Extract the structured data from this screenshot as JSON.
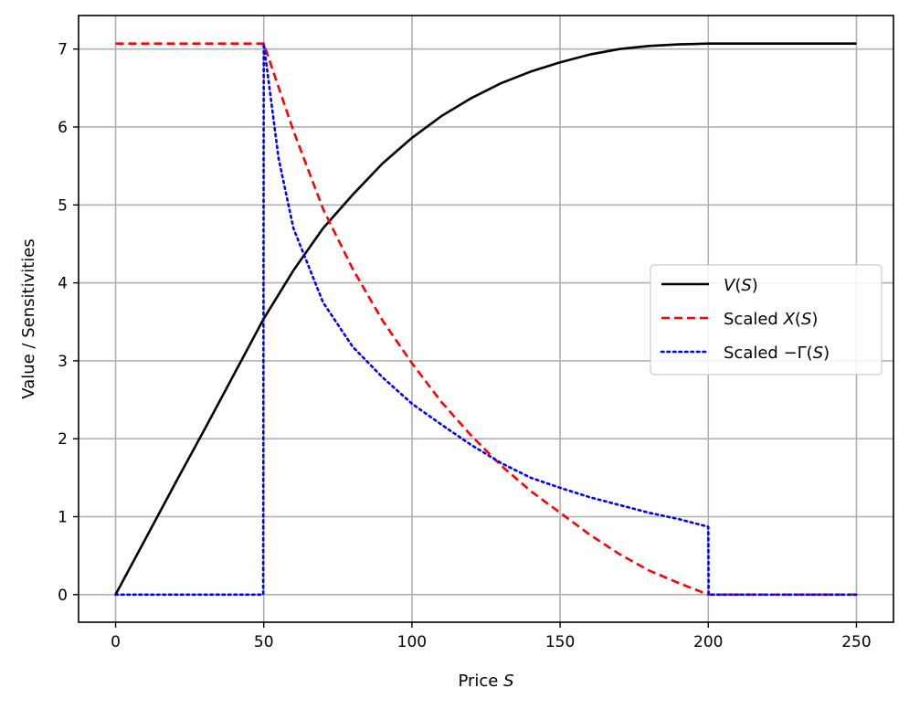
{
  "chart_data": {
    "type": "line",
    "title": "",
    "xlabel": {
      "text": "Price ",
      "var": "S"
    },
    "ylabel": "Value / Sensitivities",
    "xlim": [
      -12.5,
      262.5
    ],
    "ylim": [
      -0.354,
      7.43
    ],
    "xticks": [
      0,
      50,
      100,
      150,
      200,
      250
    ],
    "yticks": [
      0,
      1,
      2,
      3,
      4,
      5,
      6,
      7
    ],
    "grid": true,
    "legend_position": "center-right",
    "series": [
      {
        "name": "V(S)",
        "label_parts": [
          {
            "t": "V",
            "i": true
          },
          {
            "t": "(",
            "i": false
          },
          {
            "t": "S",
            "i": true
          },
          {
            "t": ")",
            "i": false
          }
        ],
        "color": "#000000",
        "dash": "solid",
        "x": [
          0,
          10,
          20,
          30,
          40,
          50,
          60,
          70,
          80,
          90,
          100,
          110,
          120,
          130,
          140,
          150,
          160,
          170,
          180,
          190,
          200,
          210,
          220,
          230,
          240,
          250
        ],
        "y": [
          0,
          0.71,
          1.42,
          2.12,
          2.83,
          3.54,
          4.16,
          4.7,
          5.13,
          5.53,
          5.86,
          6.14,
          6.37,
          6.56,
          6.71,
          6.83,
          6.93,
          7.0,
          7.04,
          7.06,
          7.07,
          7.07,
          7.07,
          7.07,
          7.07,
          7.07
        ]
      },
      {
        "name": "Scaled X(S)",
        "label_parts": [
          {
            "t": "Scaled ",
            "i": false
          },
          {
            "t": "X",
            "i": true
          },
          {
            "t": "(",
            "i": false
          },
          {
            "t": "S",
            "i": true
          },
          {
            "t": ")",
            "i": false
          }
        ],
        "color": "#ff0000",
        "dash": "dashed",
        "x": [
          0,
          50,
          60,
          70,
          80,
          90,
          100,
          110,
          120,
          130,
          140,
          150,
          160,
          170,
          180,
          190,
          200,
          200.5,
          250
        ],
        "y": [
          7.07,
          7.07,
          5.95,
          4.95,
          4.18,
          3.52,
          2.97,
          2.47,
          2.04,
          1.66,
          1.33,
          1.05,
          0.77,
          0.52,
          0.31,
          0.15,
          0.0,
          0.0,
          0.0
        ]
      },
      {
        "name": "Scaled −Γ(S)",
        "label_parts": [
          {
            "t": "Scaled −Γ(",
            "i": false
          },
          {
            "t": "S",
            "i": true
          },
          {
            "t": ")",
            "i": false
          }
        ],
        "color": "#0000ff",
        "dash": "dotted",
        "x": [
          0,
          49.8,
          50,
          55,
          60,
          70,
          80,
          90,
          100,
          110,
          120,
          130,
          140,
          150,
          160,
          170,
          180,
          190,
          200,
          200.1,
          250
        ],
        "y": [
          0,
          0,
          7.07,
          5.6,
          4.7,
          3.75,
          3.18,
          2.79,
          2.45,
          2.18,
          1.92,
          1.69,
          1.5,
          1.37,
          1.25,
          1.15,
          1.05,
          0.97,
          0.87,
          0.0,
          0.0
        ]
      }
    ]
  }
}
